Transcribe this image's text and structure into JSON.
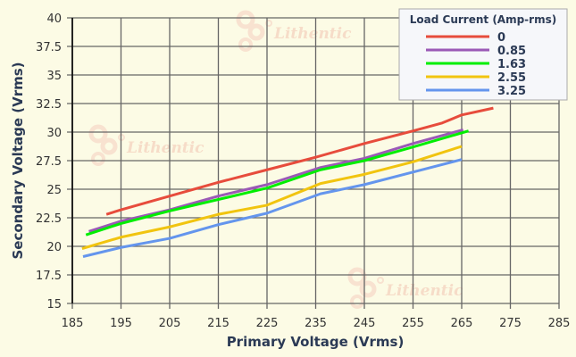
{
  "chart_data": {
    "type": "line",
    "title": "",
    "xlabel": "Primary Voltage (Vrms)",
    "ylabel": "Secondary Voltage (Vrms)",
    "xlim": [
      185,
      285
    ],
    "ylim": [
      15,
      40
    ],
    "xticks": [
      "185",
      "195",
      "205",
      "215",
      "225",
      "235",
      "245",
      "255",
      "265",
      "275",
      "285"
    ],
    "yticks": [
      "15",
      "17.5",
      "20",
      "22.5",
      "25",
      "27.5",
      "30",
      "32.5",
      "35",
      "37.5",
      "40"
    ],
    "grid": true,
    "legend": {
      "title": "Load Current (Amp-rms)",
      "placement": "top-right"
    },
    "watermark": "Lithentic",
    "series": [
      {
        "name": "0",
        "color": "#e74c3c",
        "x": [
          192,
          195,
          205,
          215,
          225,
          235,
          245,
          255,
          261,
          265,
          271.5
        ],
        "y": [
          22.8,
          23.2,
          24.4,
          25.6,
          26.7,
          27.8,
          29.0,
          30.1,
          30.8,
          31.5,
          32.1
        ]
      },
      {
        "name": "0.85",
        "color": "#9b59b6",
        "x": [
          188.4,
          195,
          205,
          215,
          225,
          236,
          245,
          255,
          265.3
        ],
        "y": [
          21.3,
          22.2,
          23.2,
          24.4,
          25.4,
          26.9,
          27.7,
          29.0,
          30.2
        ]
      },
      {
        "name": "1.63",
        "color": "#00ee00",
        "x": [
          187.8,
          195,
          205,
          215,
          225,
          236,
          245,
          255,
          266.4
        ],
        "y": [
          21.0,
          22.0,
          23.1,
          24.1,
          25.1,
          26.7,
          27.5,
          28.7,
          30.1
        ]
      },
      {
        "name": "2.55",
        "color": "#f1c40f",
        "x": [
          187,
          195,
          205,
          215,
          225,
          236,
          245,
          255,
          265
        ],
        "y": [
          19.8,
          20.8,
          21.7,
          22.8,
          23.6,
          25.5,
          26.3,
          27.4,
          28.75
        ]
      },
      {
        "name": "3.25",
        "color": "#6495ed",
        "x": [
          187.2,
          195,
          205,
          215,
          225,
          236,
          245,
          255,
          265
        ],
        "y": [
          19.1,
          19.9,
          20.7,
          21.9,
          22.9,
          24.6,
          25.4,
          26.5,
          27.6
        ]
      }
    ]
  }
}
